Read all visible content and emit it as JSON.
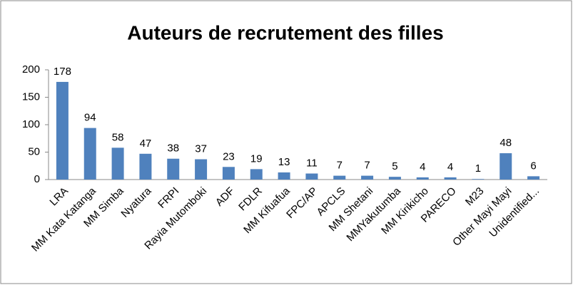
{
  "chart_data": {
    "type": "bar",
    "title": "Auteurs de recrutement des filles",
    "categories": [
      "LRA",
      "MM Kata Katanga",
      "MM Simba",
      "Nyatura",
      "FRPI",
      "Rayia Mutomboki",
      "ADF",
      "FDLR",
      "MM Kifuafua",
      "FPC/AP",
      "APCLS",
      "MM Shetani",
      "MMYakutumba",
      "MM Kirikicho",
      "PARECO",
      "M23",
      "Other Mayi Mayi",
      "Unidentified..."
    ],
    "values": [
      178,
      94,
      58,
      47,
      38,
      37,
      23,
      19,
      13,
      11,
      7,
      7,
      5,
      4,
      4,
      1,
      48,
      6
    ],
    "color": "#4f81bd",
    "ylim": [
      0,
      200
    ],
    "yticks": [
      0,
      50,
      100,
      150,
      200
    ],
    "grid": false
  }
}
